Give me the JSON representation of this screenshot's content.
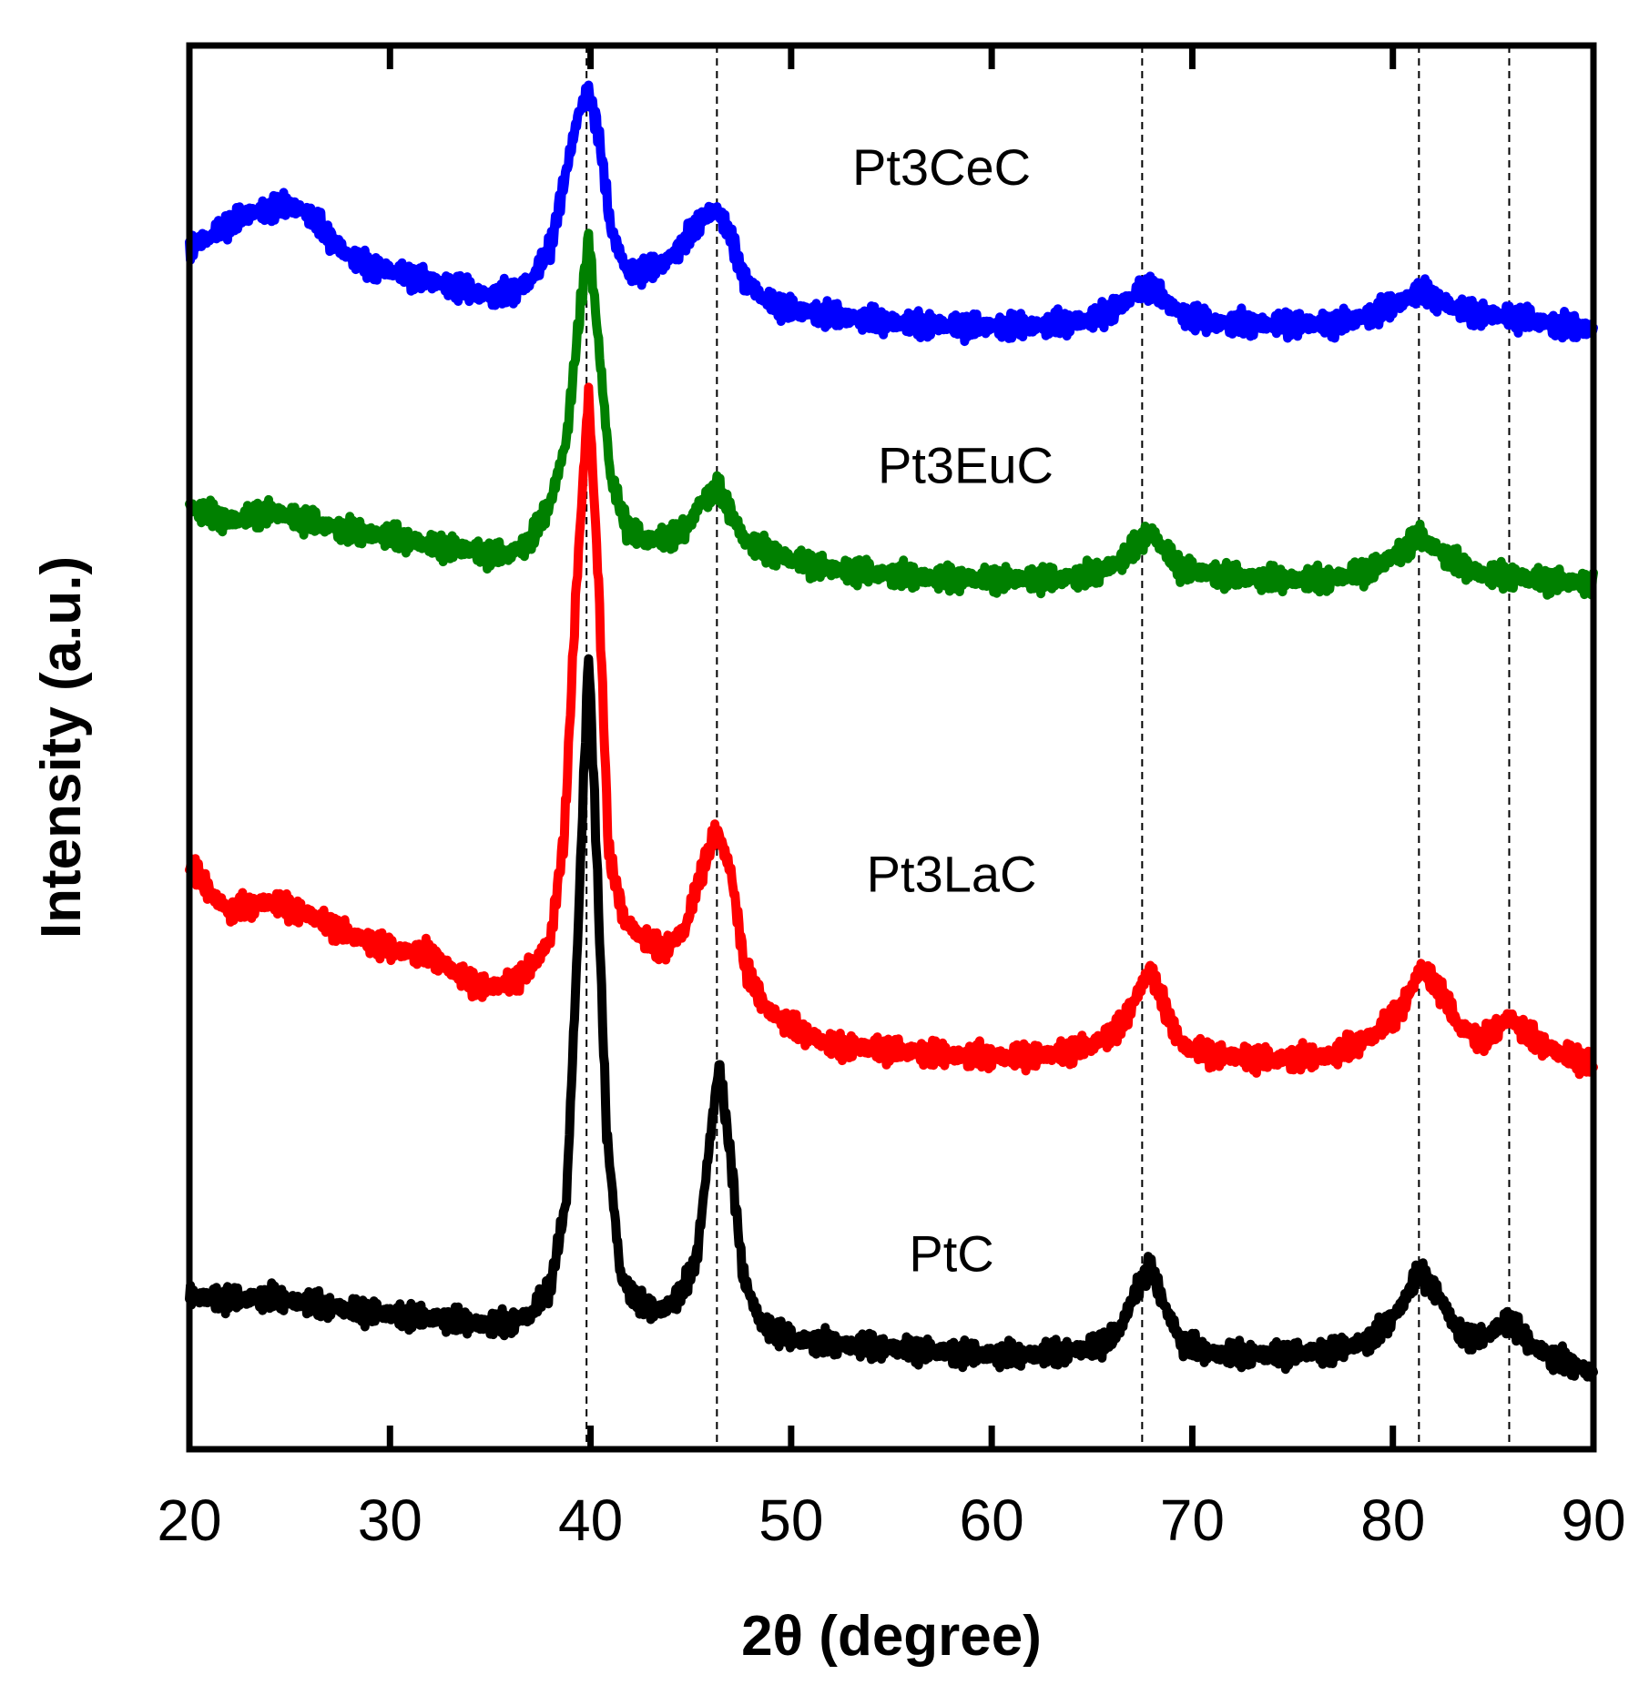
{
  "chart_data": {
    "type": "line",
    "xlabel": "2θ (degree)",
    "ylabel": "Intensity (a.u.)",
    "xlim": [
      20,
      90
    ],
    "xticks": [
      "20",
      "30",
      "40",
      "50",
      "60",
      "70",
      "80",
      "90"
    ],
    "ylim": [
      0,
      1.46
    ],
    "yticks_shown": false,
    "grid": false,
    "reference_lines_x": [
      39.8,
      46.3,
      67.5,
      81.3,
      85.8
    ],
    "legend": "inline labels",
    "series": [
      {
        "name": "PtC",
        "color": "#000000",
        "points": [
          [
            20,
            0.158
          ],
          [
            22,
            0.156
          ],
          [
            24,
            0.158
          ],
          [
            26,
            0.152
          ],
          [
            28,
            0.145
          ],
          [
            30,
            0.14
          ],
          [
            32,
            0.137
          ],
          [
            34,
            0.132
          ],
          [
            35,
            0.13
          ],
          [
            36,
            0.132
          ],
          [
            37,
            0.14
          ],
          [
            38,
            0.17
          ],
          [
            38.8,
            0.26
          ],
          [
            39.3,
            0.5
          ],
          [
            39.9,
            0.83
          ],
          [
            40.3,
            0.62
          ],
          [
            40.8,
            0.33
          ],
          [
            41.5,
            0.18
          ],
          [
            42.5,
            0.15
          ],
          [
            43.5,
            0.145
          ],
          [
            44.5,
            0.16
          ],
          [
            45.3,
            0.2
          ],
          [
            46.0,
            0.33
          ],
          [
            46.4,
            0.4
          ],
          [
            47.0,
            0.3
          ],
          [
            47.6,
            0.18
          ],
          [
            48.5,
            0.13
          ],
          [
            50,
            0.115
          ],
          [
            52,
            0.11
          ],
          [
            55,
            0.105
          ],
          [
            58,
            0.1
          ],
          [
            61,
            0.098
          ],
          [
            63,
            0.1
          ],
          [
            65,
            0.105
          ],
          [
            66.3,
            0.12
          ],
          [
            67.3,
            0.17
          ],
          [
            67.9,
            0.19
          ],
          [
            68.6,
            0.15
          ],
          [
            69.5,
            0.11
          ],
          [
            71,
            0.1
          ],
          [
            74,
            0.098
          ],
          [
            77,
            0.102
          ],
          [
            79,
            0.115
          ],
          [
            80.3,
            0.145
          ],
          [
            81.3,
            0.185
          ],
          [
            82.3,
            0.16
          ],
          [
            83.3,
            0.12
          ],
          [
            84.5,
            0.115
          ],
          [
            85.8,
            0.135
          ],
          [
            86.8,
            0.11
          ],
          [
            88,
            0.095
          ],
          [
            90,
            0.08
          ]
        ]
      },
      {
        "name": "Pt3LaC",
        "color": "#ff0000",
        "points": [
          [
            20,
            0.61
          ],
          [
            21,
            0.58
          ],
          [
            22,
            0.56
          ],
          [
            24,
            0.57
          ],
          [
            26,
            0.555
          ],
          [
            28,
            0.535
          ],
          [
            30,
            0.52
          ],
          [
            32,
            0.515
          ],
          [
            33,
            0.5
          ],
          [
            34,
            0.485
          ],
          [
            35,
            0.48
          ],
          [
            36,
            0.485
          ],
          [
            37,
            0.5
          ],
          [
            38,
            0.53
          ],
          [
            38.7,
            0.64
          ],
          [
            39.3,
            0.9
          ],
          [
            39.9,
            1.1
          ],
          [
            40.4,
            0.9
          ],
          [
            40.9,
            0.62
          ],
          [
            41.7,
            0.55
          ],
          [
            42.7,
            0.53
          ],
          [
            43.7,
            0.52
          ],
          [
            44.7,
            0.54
          ],
          [
            45.5,
            0.6
          ],
          [
            46.3,
            0.645
          ],
          [
            47.0,
            0.6
          ],
          [
            47.7,
            0.5
          ],
          [
            48.7,
            0.46
          ],
          [
            50,
            0.44
          ],
          [
            52,
            0.42
          ],
          [
            55,
            0.415
          ],
          [
            58,
            0.41
          ],
          [
            61,
            0.408
          ],
          [
            63,
            0.41
          ],
          [
            65,
            0.42
          ],
          [
            66.5,
            0.44
          ],
          [
            67.4,
            0.48
          ],
          [
            67.9,
            0.5
          ],
          [
            68.6,
            0.46
          ],
          [
            69.5,
            0.42
          ],
          [
            71,
            0.41
          ],
          [
            74,
            0.405
          ],
          [
            77,
            0.41
          ],
          [
            79,
            0.43
          ],
          [
            80.5,
            0.46
          ],
          [
            81.4,
            0.5
          ],
          [
            82.3,
            0.48
          ],
          [
            83.3,
            0.44
          ],
          [
            84.5,
            0.425
          ],
          [
            85.8,
            0.45
          ],
          [
            86.8,
            0.43
          ],
          [
            88,
            0.415
          ],
          [
            90,
            0.4
          ]
        ]
      },
      {
        "name": "Pt3EuC",
        "color": "#008000",
        "points": [
          [
            20,
            0.98
          ],
          [
            22,
            0.965
          ],
          [
            24,
            0.975
          ],
          [
            26,
            0.965
          ],
          [
            28,
            0.955
          ],
          [
            30,
            0.95
          ],
          [
            32,
            0.94
          ],
          [
            34,
            0.935
          ],
          [
            35,
            0.93
          ],
          [
            36,
            0.932
          ],
          [
            37,
            0.945
          ],
          [
            38,
            0.985
          ],
          [
            38.8,
            1.05
          ],
          [
            39.4,
            1.17
          ],
          [
            39.9,
            1.26
          ],
          [
            40.4,
            1.15
          ],
          [
            41.0,
            1.01
          ],
          [
            41.8,
            0.96
          ],
          [
            42.7,
            0.945
          ],
          [
            43.7,
            0.948
          ],
          [
            44.7,
            0.955
          ],
          [
            45.5,
            0.985
          ],
          [
            46.3,
            1.0
          ],
          [
            47.0,
            0.975
          ],
          [
            47.7,
            0.945
          ],
          [
            48.7,
            0.935
          ],
          [
            50,
            0.925
          ],
          [
            52,
            0.915
          ],
          [
            55,
            0.91
          ],
          [
            58,
            0.905
          ],
          [
            61,
            0.905
          ],
          [
            63,
            0.905
          ],
          [
            65,
            0.91
          ],
          [
            66.5,
            0.925
          ],
          [
            67.4,
            0.945
          ],
          [
            67.9,
            0.955
          ],
          [
            68.6,
            0.935
          ],
          [
            69.5,
            0.915
          ],
          [
            71,
            0.91
          ],
          [
            74,
            0.905
          ],
          [
            77,
            0.905
          ],
          [
            79,
            0.915
          ],
          [
            80.5,
            0.935
          ],
          [
            81.3,
            0.95
          ],
          [
            82.3,
            0.935
          ],
          [
            83.3,
            0.92
          ],
          [
            84.5,
            0.91
          ],
          [
            85.8,
            0.908
          ],
          [
            86.8,
            0.905
          ],
          [
            88,
            0.903
          ],
          [
            90,
            0.9
          ]
        ]
      },
      {
        "name": "Pt3CeC",
        "color": "#0000ff",
        "points": [
          [
            20,
            1.25
          ],
          [
            21,
            1.26
          ],
          [
            22,
            1.275
          ],
          [
            23,
            1.285
          ],
          [
            24,
            1.29
          ],
          [
            25,
            1.295
          ],
          [
            26,
            1.285
          ],
          [
            27,
            1.26
          ],
          [
            28,
            1.24
          ],
          [
            29,
            1.23
          ],
          [
            30,
            1.225
          ],
          [
            31,
            1.22
          ],
          [
            32,
            1.215
          ],
          [
            33,
            1.21
          ],
          [
            34,
            1.205
          ],
          [
            35,
            1.2
          ],
          [
            36,
            1.203
          ],
          [
            37,
            1.215
          ],
          [
            38,
            1.25
          ],
          [
            38.8,
            1.33
          ],
          [
            39.4,
            1.39
          ],
          [
            39.9,
            1.41
          ],
          [
            40.4,
            1.37
          ],
          [
            41.0,
            1.27
          ],
          [
            41.8,
            1.225
          ],
          [
            42.7,
            1.225
          ],
          [
            43.7,
            1.235
          ],
          [
            44.7,
            1.255
          ],
          [
            45.5,
            1.28
          ],
          [
            46.3,
            1.29
          ],
          [
            47.0,
            1.26
          ],
          [
            47.7,
            1.215
          ],
          [
            48.7,
            1.195
          ],
          [
            50,
            1.185
          ],
          [
            52,
            1.18
          ],
          [
            55,
            1.172
          ],
          [
            58,
            1.168
          ],
          [
            61,
            1.168
          ],
          [
            63,
            1.17
          ],
          [
            65,
            1.175
          ],
          [
            66.5,
            1.19
          ],
          [
            67.4,
            1.205
          ],
          [
            67.9,
            1.21
          ],
          [
            68.6,
            1.195
          ],
          [
            69.5,
            1.18
          ],
          [
            71,
            1.172
          ],
          [
            74,
            1.17
          ],
          [
            77,
            1.17
          ],
          [
            79,
            1.18
          ],
          [
            80.5,
            1.195
          ],
          [
            81.3,
            1.205
          ],
          [
            82.3,
            1.195
          ],
          [
            83.3,
            1.185
          ],
          [
            84.5,
            1.18
          ],
          [
            85.8,
            1.178
          ],
          [
            86.8,
            1.175
          ],
          [
            88,
            1.17
          ],
          [
            90,
            1.165
          ]
        ]
      }
    ],
    "labels": [
      {
        "text": "Pt3CeC",
        "x": 57.5,
        "y": 1.315
      },
      {
        "text": "Pt3EuC",
        "x": 58.7,
        "y": 1.005
      },
      {
        "text": "Pt3LaC",
        "x": 58.0,
        "y": 0.58
      },
      {
        "text": "PtC",
        "x": 58.0,
        "y": 0.185
      }
    ]
  }
}
